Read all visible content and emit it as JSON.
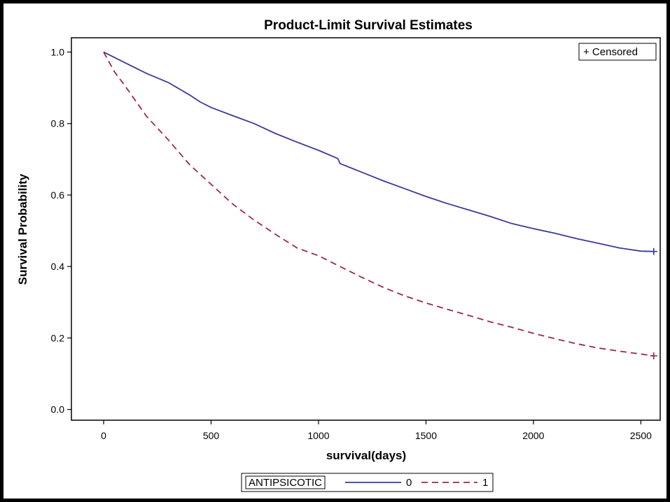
{
  "chart_data": {
    "type": "line",
    "title": "Product-Limit Survival Estimates",
    "xlabel": "survival(days)",
    "ylabel": "Survival Probability",
    "xlim": [
      -150,
      2590
    ],
    "ylim": [
      -0.03,
      1.04
    ],
    "x_ticks": [
      0,
      500,
      1000,
      1500,
      2000,
      2500
    ],
    "x_tick_labels": [
      "0",
      "500",
      "1000",
      "1500",
      "2000",
      "2500"
    ],
    "y_ticks": [
      0.0,
      0.2,
      0.4,
      0.6,
      0.8,
      1.0
    ],
    "y_tick_labels": [
      "0.0",
      "0.2",
      "0.4",
      "0.6",
      "0.8",
      "1.0"
    ],
    "grid": false,
    "censored_legend": "+ Censored",
    "legend_title": "ANTIPSICOTIC",
    "legend_position": "bottom",
    "series": [
      {
        "name": "0",
        "color": "#3a3a9a",
        "dash": "solid",
        "x": [
          0,
          100,
          200,
          300,
          400,
          450,
          500,
          600,
          700,
          800,
          900,
          1000,
          1090,
          1100,
          1200,
          1300,
          1400,
          1500,
          1600,
          1700,
          1800,
          1900,
          2000,
          2100,
          2200,
          2300,
          2400,
          2500,
          2560
        ],
        "y": [
          1.0,
          0.97,
          0.94,
          0.915,
          0.88,
          0.86,
          0.845,
          0.822,
          0.8,
          0.772,
          0.748,
          0.725,
          0.702,
          0.688,
          0.664,
          0.64,
          0.618,
          0.596,
          0.576,
          0.558,
          0.54,
          0.52,
          0.506,
          0.493,
          0.478,
          0.465,
          0.452,
          0.443,
          0.442
        ],
        "censored_at": [
          2560,
          0.442
        ]
      },
      {
        "name": "1",
        "color": "#9a2a44",
        "dash": "dashed",
        "x": [
          0,
          50,
          100,
          200,
          300,
          400,
          500,
          600,
          700,
          800,
          900,
          1000,
          1100,
          1200,
          1300,
          1400,
          1500,
          1600,
          1700,
          1800,
          1900,
          2000,
          2100,
          2200,
          2300,
          2400,
          2500,
          2560
        ],
        "y": [
          1.0,
          0.945,
          0.905,
          0.82,
          0.755,
          0.685,
          0.63,
          0.575,
          0.53,
          0.49,
          0.452,
          0.43,
          0.4,
          0.37,
          0.342,
          0.318,
          0.298,
          0.28,
          0.263,
          0.245,
          0.23,
          0.213,
          0.198,
          0.184,
          0.172,
          0.163,
          0.155,
          0.15
        ],
        "censored_at": [
          2560,
          0.15
        ]
      }
    ]
  }
}
